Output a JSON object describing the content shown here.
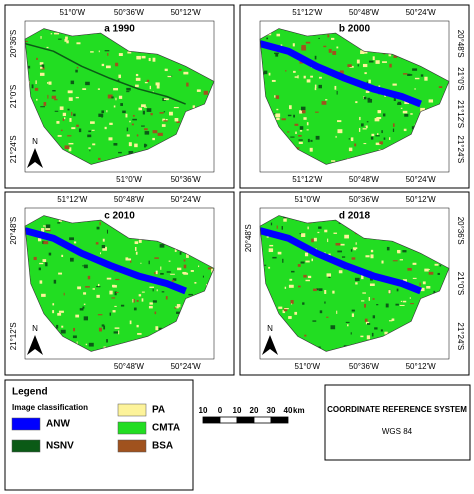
{
  "panels": [
    {
      "label": "a 1990",
      "top_ticks": [
        "51°0'W",
        "50°36'W",
        "50°12'W"
      ],
      "bottom_ticks": [
        "51°0'W",
        "50°36'W"
      ],
      "left_ticks": [
        "20°36'S",
        "21°0'S",
        "21°24'S"
      ],
      "right_ticks": [],
      "north": "N"
    },
    {
      "label": "b 2000",
      "top_ticks": [
        "51°12'W",
        "50°48'W",
        "50°24'W"
      ],
      "bottom_ticks": [
        "51°12'W",
        "50°48'W",
        "50°24'W"
      ],
      "left_ticks": [],
      "right_ticks": [
        "20°48'S",
        "21°0'S",
        "21°12'S",
        "21°24'S"
      ]
    },
    {
      "label": "c 2010",
      "top_ticks": [
        "51°12'W",
        "50°48'W",
        "50°24'W"
      ],
      "bottom_ticks": [
        "50°48'W",
        "50°24'W"
      ],
      "left_ticks": [
        "20°48'S",
        "21°12'S"
      ],
      "right_ticks": [],
      "north": "N"
    },
    {
      "label": "d 2018",
      "top_ticks": [
        "51°0'W",
        "50°36'W",
        "50°12'W"
      ],
      "bottom_ticks": [
        "51°0'W",
        "50°36'W",
        "50°12'W"
      ],
      "left_ticks": [
        "20°48'S"
      ],
      "right_ticks": [
        "20°36'S",
        "21°0'S",
        "21°24'S"
      ],
      "north": "N"
    }
  ],
  "legend": {
    "title": "Legend",
    "subtitle": "Image classification",
    "items": [
      {
        "label": "ANW",
        "color": "#0000ff"
      },
      {
        "label": "NSNV",
        "color": "#0b5a16"
      },
      {
        "label": "PA",
        "color": "#fdf39a"
      },
      {
        "label": "CMTA",
        "color": "#22dd22"
      },
      {
        "label": "BSA",
        "color": "#a0521e"
      }
    ]
  },
  "scale_bar": {
    "labels": [
      "10",
      "0",
      "10",
      "20",
      "30",
      "40"
    ],
    "unit": "km"
  },
  "crs": {
    "title": "COORDINATE REFERENCE SYSTEM",
    "name": "WGS 84"
  }
}
